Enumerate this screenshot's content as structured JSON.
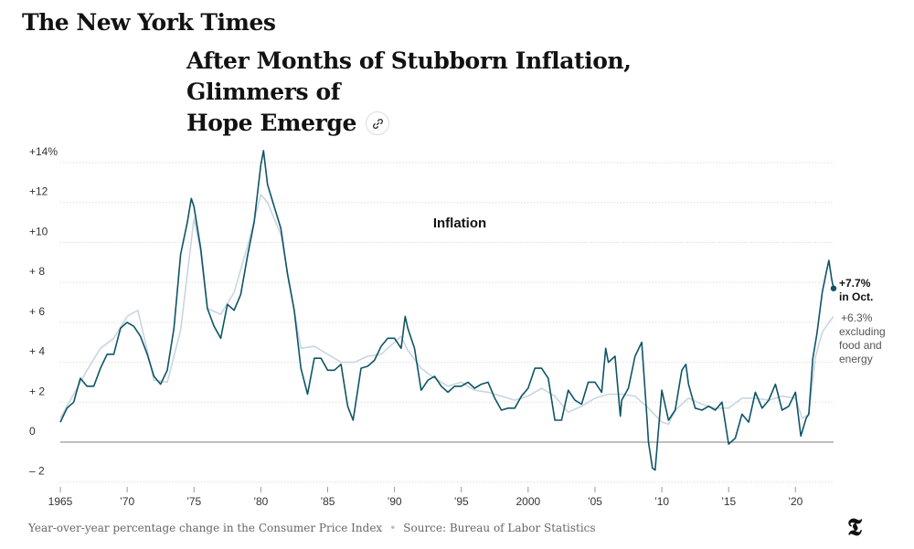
{
  "masthead": "The New York Times",
  "headline": {
    "line1": "After Months of Stubborn Inflation, Glimmers of",
    "line2": "Hope Emerge",
    "link_icon": "link-icon"
  },
  "footer": {
    "note": "Year-over-year percentage change in the Consumer Price Index",
    "source": "Source: Bureau of Labor Statistics"
  },
  "logo_icon": "nyt-t-logo",
  "colors": {
    "headline_series": "#0e5566",
    "core_series": "#c8d6e1",
    "zero_line": "#999999",
    "grid": "#cccccc"
  },
  "chart_data": {
    "type": "line",
    "title": "Inflation",
    "xlabel": "",
    "ylabel": "",
    "ylim": [
      -3,
      15
    ],
    "xlim": [
      1965,
      2022.85
    ],
    "y_ticks": [
      {
        "v": 14,
        "label": "+14%"
      },
      {
        "v": 12,
        "label": "+12"
      },
      {
        "v": 10,
        "label": "+10"
      },
      {
        "v": 8,
        "label": "+ 8"
      },
      {
        "v": 6,
        "label": "+ 6"
      },
      {
        "v": 4,
        "label": "+ 4"
      },
      {
        "v": 2,
        "label": "+ 2"
      },
      {
        "v": 0,
        "label": "0"
      },
      {
        "v": -2,
        "label": "– 2"
      }
    ],
    "x_ticks": [
      {
        "v": 1965,
        "label": "1965"
      },
      {
        "v": 1970,
        "label": "’70"
      },
      {
        "v": 1975,
        "label": "’75"
      },
      {
        "v": 1980,
        "label": "’80"
      },
      {
        "v": 1985,
        "label": "’85"
      },
      {
        "v": 1990,
        "label": "’90"
      },
      {
        "v": 1995,
        "label": "’95"
      },
      {
        "v": 2000,
        "label": "2000"
      },
      {
        "v": 2005,
        "label": "’05"
      },
      {
        "v": 2010,
        "label": "’10"
      },
      {
        "v": 2015,
        "label": "’15"
      },
      {
        "v": 2020,
        "label": "’20"
      }
    ],
    "grid": true,
    "series": [
      {
        "key": "all_items",
        "x": [
          1965.0,
          1965.5,
          1966.0,
          1966.5,
          1967.0,
          1967.5,
          1968.0,
          1968.5,
          1969.0,
          1969.5,
          1970.0,
          1970.5,
          1971.0,
          1971.5,
          1972.0,
          1972.5,
          1973.0,
          1973.5,
          1974.0,
          1974.5,
          1974.8,
          1975.0,
          1975.5,
          1976.0,
          1976.5,
          1977.0,
          1977.5,
          1978.0,
          1978.5,
          1979.0,
          1979.5,
          1980.0,
          1980.2,
          1980.5,
          1981.0,
          1981.5,
          1982.0,
          1982.5,
          1983.0,
          1983.5,
          1984.0,
          1984.5,
          1985.0,
          1985.5,
          1986.0,
          1986.5,
          1986.9,
          1987.0,
          1987.5,
          1988.0,
          1988.5,
          1989.0,
          1989.5,
          1990.0,
          1990.5,
          1990.8,
          1991.0,
          1991.5,
          1992.0,
          1992.5,
          1993.0,
          1993.5,
          1994.0,
          1994.5,
          1995.0,
          1995.5,
          1996.0,
          1996.5,
          1997.0,
          1997.5,
          1998.0,
          1998.5,
          1999.0,
          1999.5,
          2000.0,
          2000.5,
          2001.0,
          2001.5,
          2002.0,
          2002.5,
          2003.0,
          2003.5,
          2004.0,
          2004.5,
          2005.0,
          2005.5,
          2005.8,
          2006.0,
          2006.5,
          2006.9,
          2007.0,
          2007.5,
          2008.0,
          2008.5,
          2008.9,
          2009.0,
          2009.3,
          2009.5,
          2009.9,
          2010.0,
          2010.5,
          2011.0,
          2011.5,
          2011.8,
          2012.0,
          2012.5,
          2013.0,
          2013.5,
          2014.0,
          2014.5,
          2015.0,
          2015.5,
          2016.0,
          2016.5,
          2017.0,
          2017.5,
          2018.0,
          2018.5,
          2019.0,
          2019.5,
          2020.0,
          2020.4,
          2020.8,
          2021.0,
          2021.3,
          2021.6,
          2022.0,
          2022.3,
          2022.5,
          2022.7,
          2022.85
        ],
        "values": [
          1.0,
          1.7,
          2.0,
          3.2,
          2.8,
          2.8,
          3.7,
          4.4,
          4.4,
          5.7,
          6.0,
          5.8,
          5.3,
          4.4,
          3.3,
          2.9,
          3.6,
          5.7,
          9.4,
          11.0,
          12.2,
          11.8,
          9.7,
          6.7,
          5.8,
          5.2,
          6.9,
          6.6,
          7.4,
          9.3,
          11.0,
          13.9,
          14.6,
          12.9,
          11.8,
          10.7,
          8.4,
          6.6,
          3.7,
          2.4,
          4.2,
          4.2,
          3.6,
          3.6,
          3.9,
          1.8,
          1.1,
          1.5,
          3.7,
          3.8,
          4.1,
          4.8,
          5.2,
          5.2,
          4.7,
          6.3,
          5.7,
          4.7,
          2.6,
          3.1,
          3.3,
          2.8,
          2.5,
          2.8,
          2.8,
          3.0,
          2.7,
          2.9,
          3.0,
          2.2,
          1.6,
          1.7,
          1.7,
          2.3,
          2.7,
          3.7,
          3.7,
          3.2,
          1.1,
          1.1,
          2.6,
          2.1,
          1.9,
          3.0,
          3.0,
          2.5,
          4.7,
          4.0,
          4.3,
          1.3,
          2.1,
          2.7,
          4.3,
          5.0,
          1.1,
          0.0,
          -1.3,
          -1.4,
          1.8,
          2.6,
          1.1,
          1.6,
          3.6,
          3.9,
          2.9,
          1.7,
          1.6,
          1.8,
          1.6,
          2.0,
          -0.1,
          0.2,
          1.4,
          1.0,
          2.5,
          1.7,
          2.1,
          2.9,
          1.6,
          1.8,
          2.5,
          0.3,
          1.2,
          1.4,
          4.2,
          5.4,
          7.5,
          8.5,
          9.1,
          8.2,
          7.7
        ]
      },
      {
        "key": "core",
        "x": [
          1965.0,
          1966.0,
          1967.0,
          1968.0,
          1969.0,
          1970.0,
          1970.8,
          1971.5,
          1972.0,
          1973.0,
          1974.0,
          1975.0,
          1975.5,
          1976.0,
          1977.0,
          1978.0,
          1979.0,
          1980.0,
          1980.5,
          1981.0,
          1981.5,
          1982.0,
          1983.0,
          1984.0,
          1985.0,
          1986.0,
          1987.0,
          1988.0,
          1989.0,
          1990.0,
          1990.5,
          1991.0,
          1992.0,
          1993.0,
          1994.0,
          1995.0,
          1996.0,
          1997.0,
          1998.0,
          1999.0,
          2000.0,
          2001.0,
          2002.0,
          2003.0,
          2004.0,
          2005.0,
          2006.0,
          2007.0,
          2008.0,
          2009.0,
          2010.0,
          2010.5,
          2011.0,
          2012.0,
          2013.0,
          2014.0,
          2015.0,
          2016.0,
          2017.0,
          2018.0,
          2019.0,
          2020.0,
          2020.5,
          2021.0,
          2021.5,
          2022.0,
          2022.5,
          2022.85
        ],
        "values": [
          1.2,
          2.4,
          3.6,
          4.7,
          5.2,
          6.3,
          6.6,
          4.6,
          3.1,
          3.0,
          5.6,
          11.2,
          9.5,
          6.7,
          6.4,
          7.5,
          9.8,
          12.4,
          12.0,
          11.2,
          10.4,
          8.5,
          4.7,
          4.8,
          4.4,
          4.0,
          4.0,
          4.3,
          4.4,
          5.0,
          5.3,
          4.6,
          3.7,
          3.2,
          2.8,
          3.0,
          2.6,
          2.5,
          2.3,
          2.1,
          2.3,
          2.7,
          2.3,
          1.5,
          1.8,
          2.2,
          2.4,
          2.4,
          2.3,
          1.7,
          1.0,
          0.9,
          1.6,
          2.2,
          1.9,
          1.7,
          1.7,
          2.2,
          2.2,
          2.1,
          2.3,
          2.2,
          1.2,
          1.4,
          4.3,
          5.5,
          6.0,
          6.3
        ]
      }
    ],
    "annotations": {
      "headline_value": "+7.7%",
      "headline_caption": "in Oct.",
      "core_value": "+6.3%",
      "core_caption_lines": [
        "excluding",
        "food and",
        "energy"
      ]
    }
  }
}
